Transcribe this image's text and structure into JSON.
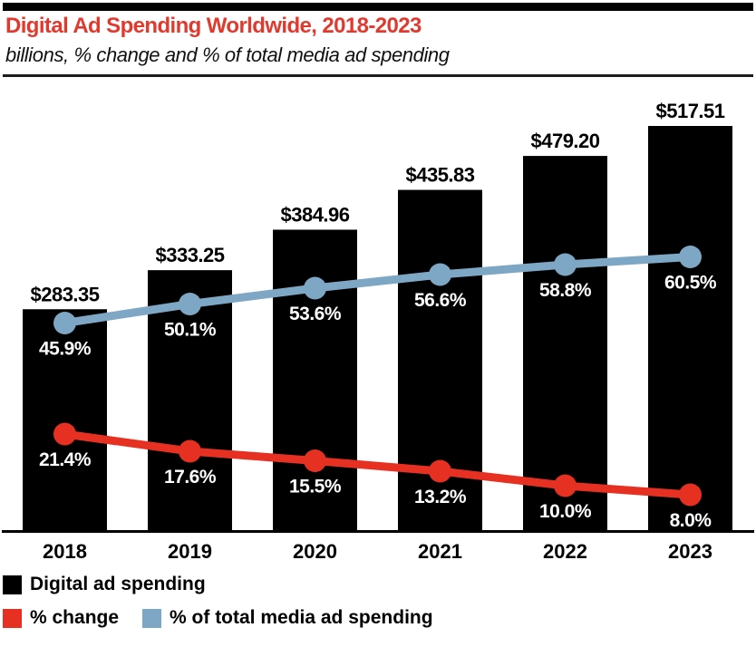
{
  "header": {
    "title": "Digital Ad Spending Worldwide, 2018-2023",
    "subtitle": "billions, % change and % of total media ad spending"
  },
  "colors": {
    "bar": "#000000",
    "change": "#e63022",
    "share": "#7ea7c5",
    "title_red": "#e0392e",
    "axis": "#000000",
    "label_on_bar": "#ffffff"
  },
  "chart_data": {
    "type": "bar",
    "title": "Digital Ad Spending Worldwide, 2018-2023",
    "subtitle": "billions, % change and % of total media ad spending",
    "categories": [
      "2018",
      "2019",
      "2020",
      "2021",
      "2022",
      "2023"
    ],
    "series": [
      {
        "name": "Digital ad spending",
        "type": "bar",
        "unit": "USD billions",
        "color": "#000000",
        "values": [
          283.35,
          333.25,
          384.96,
          435.83,
          479.2,
          517.51
        ],
        "labels": [
          "$283.35",
          "$333.25",
          "$384.96",
          "$435.83",
          "$479.20",
          "$517.51"
        ]
      },
      {
        "name": "% change",
        "type": "line",
        "unit": "%",
        "color": "#e63022",
        "values": [
          21.4,
          17.6,
          15.5,
          13.2,
          10.0,
          8.0
        ],
        "labels": [
          "21.4%",
          "17.6%",
          "15.5%",
          "13.2%",
          "10.0%",
          "8.0%"
        ]
      },
      {
        "name": "% of total media ad spending",
        "type": "line",
        "unit": "%",
        "color": "#7ea7c5",
        "values": [
          45.9,
          50.1,
          53.6,
          56.6,
          58.8,
          60.5
        ],
        "labels": [
          "45.9%",
          "50.1%",
          "53.6%",
          "56.6%",
          "58.8%",
          "60.5%"
        ]
      }
    ],
    "grid": false,
    "value_axis_hidden": true,
    "legend_position": "bottom"
  },
  "legend": {
    "items": [
      {
        "label": "Digital ad spending",
        "color": "#000000"
      },
      {
        "label": "% change",
        "color": "#e63022"
      },
      {
        "label": "% of total media ad spending",
        "color": "#7ea7c5"
      }
    ]
  }
}
